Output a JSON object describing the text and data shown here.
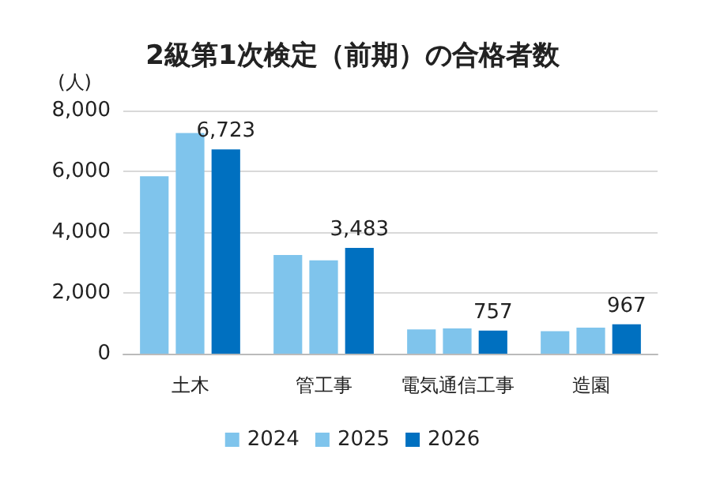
{
  "chart_data": {
    "type": "bar",
    "title": "2級第1次検定（前期）の合格者数",
    "ylabel": "(人)",
    "categories": [
      "土木",
      "管工事",
      "電気通信工事",
      "造園"
    ],
    "series": [
      {
        "name": "2024",
        "color": "#7fc4ec",
        "values": [
          5840,
          3250,
          800,
          740
        ]
      },
      {
        "name": "2025",
        "color": "#7fc4ec",
        "values": [
          7260,
          3070,
          830,
          860
        ]
      },
      {
        "name": "2026",
        "color": "#0070c0",
        "values": [
          6723,
          3483,
          757,
          967
        ],
        "value_labels": [
          "6,723",
          "3,483",
          "757",
          "967"
        ]
      }
    ],
    "ylim": [
      0,
      8000
    ],
    "yticks": [
      {
        "value": 0,
        "label": "0"
      },
      {
        "value": 2000,
        "label": "2,000"
      },
      {
        "value": 4000,
        "label": "4,000"
      },
      {
        "value": 6000,
        "label": "6,000"
      },
      {
        "value": 8000,
        "label": "8,000"
      }
    ],
    "grid": "y",
    "legend": "bottom"
  }
}
